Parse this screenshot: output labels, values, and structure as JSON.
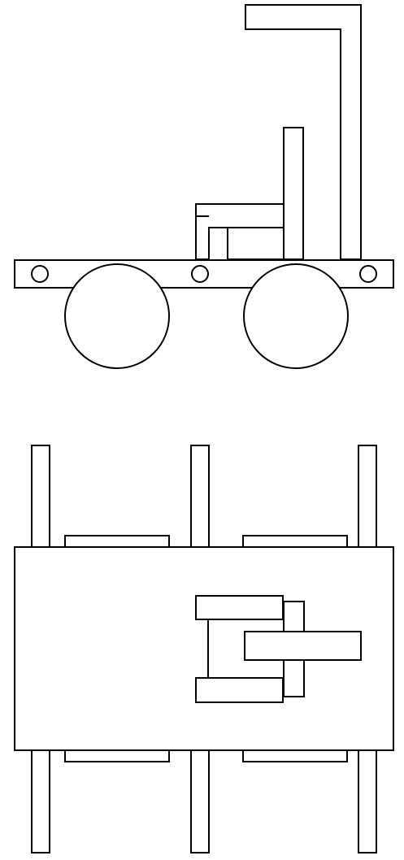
{
  "diagram": {
    "line_color": "#000000",
    "fill_color": "#ffffff",
    "background": "#ffffff",
    "views": [
      {
        "id": "side-view",
        "components": [
          "frame-beam",
          "front-wheel",
          "rear-wheel",
          "axle-holes",
          "seat",
          "seat-back",
          "push-handle"
        ]
      },
      {
        "id": "top-view",
        "components": [
          "chassis-body",
          "axle-posts",
          "wheel-tabs",
          "handle-assembly"
        ]
      }
    ]
  }
}
